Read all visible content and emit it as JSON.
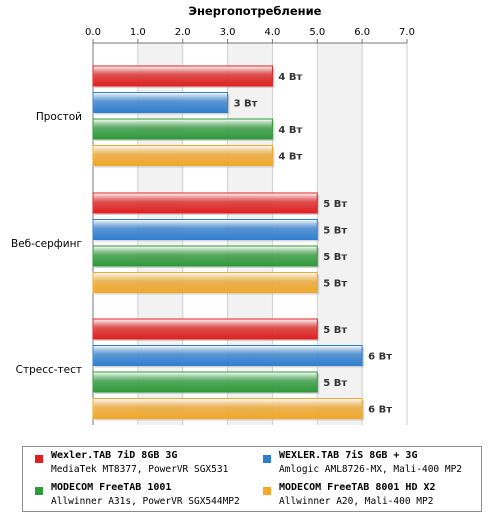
{
  "chart_data": {
    "type": "bar",
    "orientation": "horizontal",
    "title": "Энергопотребление",
    "xlim": [
      0,
      7
    ],
    "x_ticks": [
      "0.0",
      "1.0",
      "2.0",
      "3.0",
      "4.0",
      "5.0",
      "6.0",
      "7.0"
    ],
    "categories": [
      "Простой",
      "Веб-серфинг",
      "Стресс-тест"
    ],
    "unit": "Вт",
    "grid": true,
    "legend_position": "bottom",
    "series": [
      {
        "name": "Wexler.TAB 7iD 8GB 3G",
        "subtitle": "MediaTek MT8377, PowerVR SGX531",
        "color": "#e02020",
        "values": [
          4,
          5,
          5
        ]
      },
      {
        "name": "WEXLER.TAB 7iS 8GB + 3G",
        "subtitle": "Amlogic AML8726-MX, Mali-400 MP2",
        "color": "#2f7fd0",
        "values": [
          3,
          5,
          6
        ]
      },
      {
        "name": "MODECOM FreeTAB 1001",
        "subtitle": "Allwinner A31s, PowerVR SGX544MP2",
        "color": "#2e9a3a",
        "values": [
          4,
          5,
          5
        ]
      },
      {
        "name": "MODECOM FreeTAB 8001 HD X2",
        "subtitle": "Allwinner A20, Mali-400 MP2",
        "color": "#f2a82a",
        "values": [
          4,
          5,
          6
        ]
      }
    ],
    "data_labels": [
      [
        "4 Вт",
        "5 Вт",
        "5 Вт"
      ],
      [
        "3 Вт",
        "5 Вт",
        "6 Вт"
      ],
      [
        "4 Вт",
        "5 Вт",
        "5 Вт"
      ],
      [
        "4 Вт",
        "5 Вт",
        "6 Вт"
      ]
    ]
  }
}
